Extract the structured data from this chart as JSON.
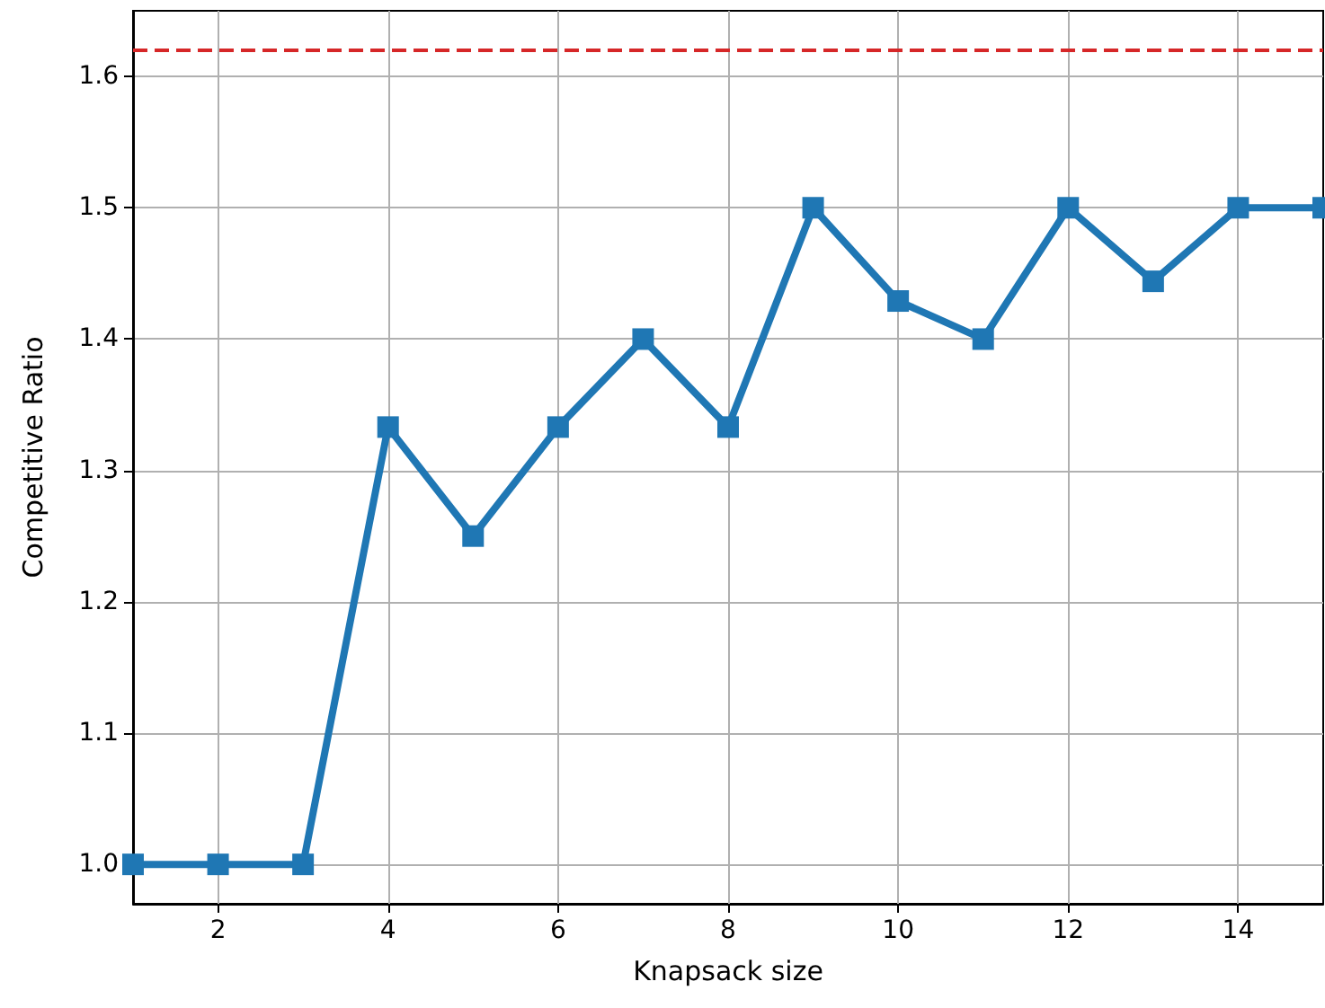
{
  "chart_data": {
    "type": "line",
    "xlabel": "Knapsack size",
    "ylabel": "Competitive Ratio",
    "x": [
      1,
      2,
      3,
      4,
      5,
      6,
      7,
      8,
      9,
      10,
      11,
      12,
      13,
      14,
      15
    ],
    "series": [
      {
        "color": "#1f77b4",
        "values": [
          1.0,
          1.0,
          1.0,
          1.333,
          1.25,
          1.333,
          1.4,
          1.333,
          1.5,
          1.429,
          1.4,
          1.5,
          1.444,
          1.5,
          1.5
        ]
      }
    ],
    "xlim": [
      1,
      15
    ],
    "xticks": [
      2,
      4,
      6,
      8,
      10,
      12,
      14
    ],
    "ylim": [
      0.97,
      1.65
    ],
    "yticks": [
      {
        "value": 1,
        "label": "1.0"
      },
      1.1,
      1.2,
      1.3,
      1.4,
      1.5,
      1.6
    ],
    "ref_lines": [
      {
        "axis": "y",
        "value": 1.618,
        "color": "#d62728",
        "line_style": "dashed"
      }
    ],
    "grid": true,
    "marker": "square",
    "line_style": "solid"
  }
}
